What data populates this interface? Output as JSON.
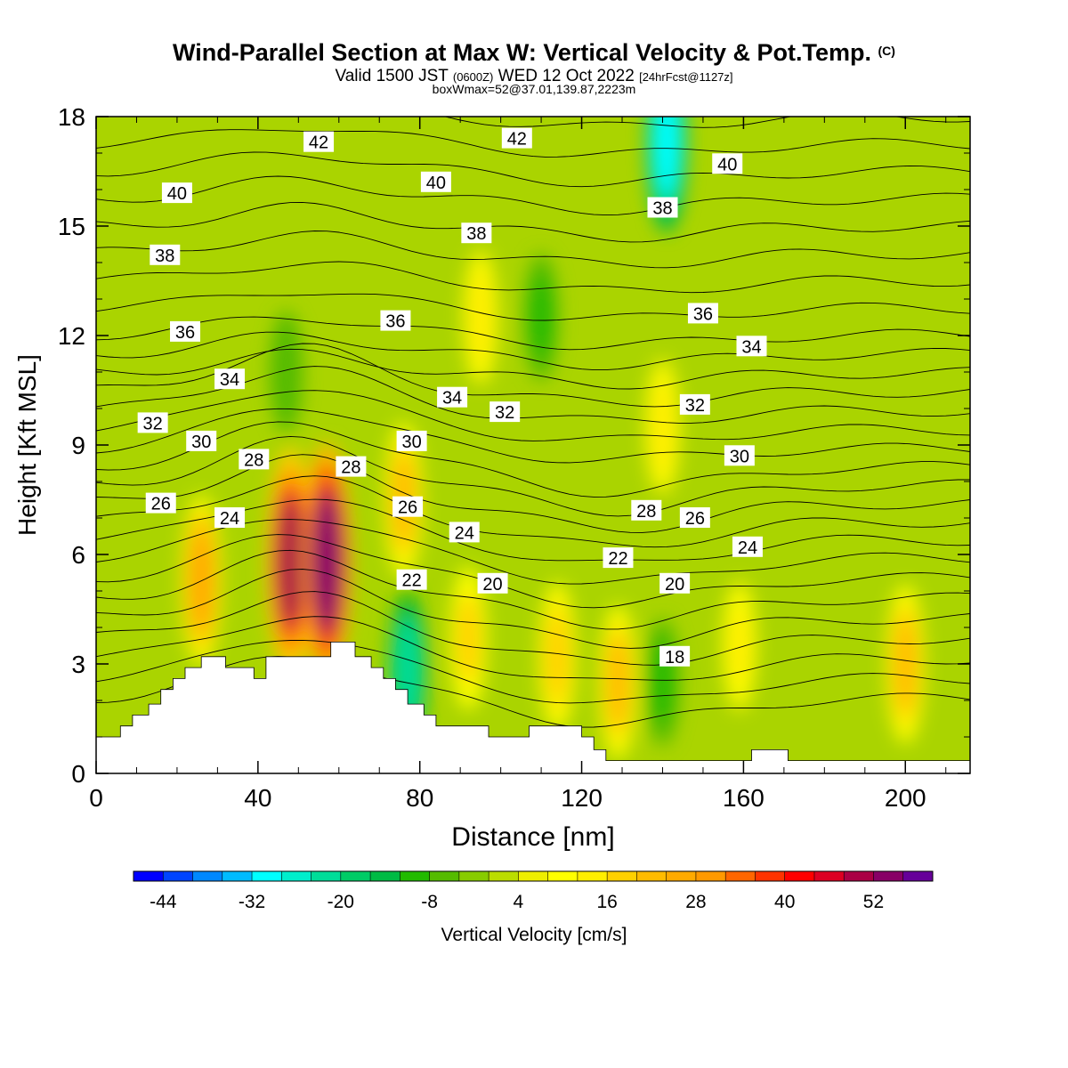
{
  "title": {
    "main": "Wind-Parallel Section at Max W: Vertical Velocity & Pot.Temp.",
    "copyright": "(C)",
    "valid_prefix": "Valid 1500 JST",
    "valid_utc": "(0600Z)",
    "valid_date": "WED 12 Oct 2022",
    "forecast": "[24hrFcst@1127z]",
    "box": "boxWmax=52@37.01,139.87,2223m"
  },
  "chart_data": {
    "type": "heatmap",
    "xlabel": "Distance [nm]",
    "ylabel": "Height [Kft MSL]",
    "xlim": [
      0,
      216
    ],
    "ylim": [
      0,
      18
    ],
    "x_ticks": [
      "0",
      "40",
      "80",
      "120",
      "160",
      "200"
    ],
    "y_ticks": [
      "0",
      "3",
      "6",
      "9",
      "12",
      "15",
      "18"
    ],
    "colorbar": {
      "label": "Vertical Velocity [cm/s]",
      "tick_labels": [
        "-44",
        "-32",
        "-20",
        "-8",
        "4",
        "16",
        "28",
        "40",
        "52"
      ],
      "min": -48,
      "max": 56,
      "step": 4,
      "colors": [
        "#0000ff",
        "#0044ff",
        "#0088ff",
        "#00bbff",
        "#00ffff",
        "#00eecc",
        "#00dd99",
        "#00cc66",
        "#00bb44",
        "#22bb00",
        "#55bb00",
        "#88cc00",
        "#bbdd00",
        "#eeee00",
        "#ffff00",
        "#ffee00",
        "#ffd000",
        "#ffbb00",
        "#ffaa00",
        "#ff9900",
        "#ff6600",
        "#ff3300",
        "#ff0000",
        "#dd0022",
        "#aa0044",
        "#880066",
        "#660099"
      ]
    },
    "updraft_cells": [
      {
        "x": 26,
        "z": 5.3,
        "w": 26
      },
      {
        "x": 48,
        "z": 5.8,
        "w": 48
      },
      {
        "x": 57,
        "z": 5.8,
        "w": 52
      },
      {
        "x": 76,
        "z": 7.5,
        "w": 20
      },
      {
        "x": 92,
        "z": 3.7,
        "w": 16
      },
      {
        "x": 95,
        "z": 12.5,
        "w": 14
      },
      {
        "x": 114,
        "z": 3.2,
        "w": 18
      },
      {
        "x": 129,
        "z": 2.5,
        "w": 20
      },
      {
        "x": 140,
        "z": 9.5,
        "w": 14
      },
      {
        "x": 159,
        "z": 3.5,
        "w": 12
      },
      {
        "x": 200,
        "z": 3.0,
        "w": 22
      }
    ],
    "downdraft_cells": [
      {
        "x": 77,
        "z": 2.8,
        "w": -24
      },
      {
        "x": 141,
        "z": 17.3,
        "w": -30
      },
      {
        "x": 140,
        "z": 2.5,
        "w": -10
      },
      {
        "x": 110,
        "z": 12.5,
        "w": -10
      },
      {
        "x": 47,
        "z": 11.0,
        "w": -8
      }
    ],
    "theta_contour_labels": [
      {
        "text": "42",
        "x": 55,
        "z": 17.3
      },
      {
        "text": "42",
        "x": 104,
        "z": 17.4
      },
      {
        "text": "40",
        "x": 20,
        "z": 15.9
      },
      {
        "text": "40",
        "x": 84,
        "z": 16.2
      },
      {
        "text": "40",
        "x": 156,
        "z": 16.7
      },
      {
        "text": "38",
        "x": 17,
        "z": 14.2
      },
      {
        "text": "38",
        "x": 94,
        "z": 14.8
      },
      {
        "text": "38",
        "x": 140,
        "z": 15.5
      },
      {
        "text": "36",
        "x": 22,
        "z": 12.1
      },
      {
        "text": "36",
        "x": 74,
        "z": 12.4
      },
      {
        "text": "36",
        "x": 150,
        "z": 12.6
      },
      {
        "text": "34",
        "x": 33,
        "z": 10.8
      },
      {
        "text": "34",
        "x": 88,
        "z": 10.3
      },
      {
        "text": "34",
        "x": 162,
        "z": 11.7
      },
      {
        "text": "32",
        "x": 14,
        "z": 9.6
      },
      {
        "text": "32",
        "x": 101,
        "z": 9.9
      },
      {
        "text": "32",
        "x": 148,
        "z": 10.1
      },
      {
        "text": "30",
        "x": 26,
        "z": 9.1
      },
      {
        "text": "30",
        "x": 78,
        "z": 9.1
      },
      {
        "text": "30",
        "x": 159,
        "z": 8.7
      },
      {
        "text": "28",
        "x": 39,
        "z": 8.6
      },
      {
        "text": "28",
        "x": 63,
        "z": 8.4
      },
      {
        "text": "28",
        "x": 136,
        "z": 7.2
      },
      {
        "text": "26",
        "x": 16,
        "z": 7.4
      },
      {
        "text": "26",
        "x": 77,
        "z": 7.3
      },
      {
        "text": "26",
        "x": 148,
        "z": 7.0
      },
      {
        "text": "24",
        "x": 33,
        "z": 7.0
      },
      {
        "text": "24",
        "x": 91,
        "z": 6.6
      },
      {
        "text": "24",
        "x": 161,
        "z": 6.2
      },
      {
        "text": "22",
        "x": 78,
        "z": 5.3
      },
      {
        "text": "22",
        "x": 129,
        "z": 5.9
      },
      {
        "text": "20",
        "x": 98,
        "z": 5.2
      },
      {
        "text": "20",
        "x": 143,
        "z": 5.2
      },
      {
        "text": "18",
        "x": 143,
        "z": 3.2
      }
    ],
    "terrain": [
      [
        0,
        1.0
      ],
      [
        6,
        1.0
      ],
      [
        6,
        1.3
      ],
      [
        9,
        1.3
      ],
      [
        9,
        1.6
      ],
      [
        13,
        1.6
      ],
      [
        13,
        1.9
      ],
      [
        16,
        1.9
      ],
      [
        16,
        2.3
      ],
      [
        19,
        2.3
      ],
      [
        19,
        2.6
      ],
      [
        22,
        2.6
      ],
      [
        22,
        2.9
      ],
      [
        26,
        2.9
      ],
      [
        26,
        3.2
      ],
      [
        32,
        3.2
      ],
      [
        32,
        2.9
      ],
      [
        39,
        2.9
      ],
      [
        39,
        2.6
      ],
      [
        42,
        2.6
      ],
      [
        42,
        3.2
      ],
      [
        58,
        3.2
      ],
      [
        58,
        3.6
      ],
      [
        64,
        3.6
      ],
      [
        64,
        3.2
      ],
      [
        68,
        3.2
      ],
      [
        68,
        2.9
      ],
      [
        71,
        2.9
      ],
      [
        71,
        2.6
      ],
      [
        74,
        2.6
      ],
      [
        74,
        2.3
      ],
      [
        77,
        2.3
      ],
      [
        77,
        1.9
      ],
      [
        81,
        1.9
      ],
      [
        81,
        1.6
      ],
      [
        84,
        1.6
      ],
      [
        84,
        1.3
      ],
      [
        97,
        1.3
      ],
      [
        97,
        1.0
      ],
      [
        107,
        1.0
      ],
      [
        107,
        1.3
      ],
      [
        120,
        1.3
      ],
      [
        120,
        1.0
      ],
      [
        123,
        1.0
      ],
      [
        123,
        0.65
      ],
      [
        126,
        0.65
      ],
      [
        126,
        0.35
      ],
      [
        162,
        0.35
      ],
      [
        162,
        0.65
      ],
      [
        171,
        0.65
      ],
      [
        171,
        0.35
      ],
      [
        216,
        0.35
      ],
      [
        216,
        0
      ],
      [
        0,
        0
      ]
    ]
  }
}
